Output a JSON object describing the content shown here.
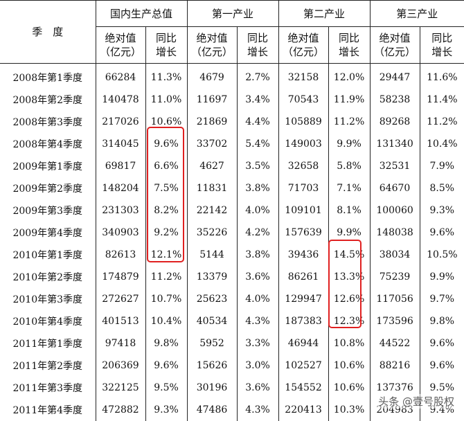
{
  "header": {
    "quarter_col": "季　度",
    "groups": [
      "国内生产总值",
      "第一产业",
      "第二产业",
      "第三产业"
    ],
    "abs_label_l1": "绝对值",
    "abs_label_l2": "（亿元）",
    "yoy_label_l1": "同比",
    "yoy_label_l2": "增长"
  },
  "rows": [
    {
      "q": "2008年第1季度",
      "v": [
        "66284",
        "11.3%",
        "4679",
        "2.7%",
        "32158",
        "12.0%",
        "29447",
        "11.6%"
      ]
    },
    {
      "q": "2008年第2季度",
      "v": [
        "140478",
        "11.0%",
        "11697",
        "3.4%",
        "70543",
        "11.9%",
        "58238",
        "11.4%"
      ]
    },
    {
      "q": "2008年第3季度",
      "v": [
        "217026",
        "10.6%",
        "21869",
        "4.4%",
        "105889",
        "11.2%",
        "89268",
        "11.2%"
      ]
    },
    {
      "q": "2008年第4季度",
      "v": [
        "314045",
        "9.6%",
        "33702",
        "5.4%",
        "149003",
        "9.9%",
        "131340",
        "10.4%"
      ]
    },
    {
      "q": "2009年第1季度",
      "v": [
        "69817",
        "6.6%",
        "4627",
        "3.5%",
        "32658",
        "5.8%",
        "32531",
        "7.9%"
      ]
    },
    {
      "q": "2009年第2季度",
      "v": [
        "148204",
        "7.5%",
        "11831",
        "3.8%",
        "71703",
        "7.1%",
        "64670",
        "8.5%"
      ]
    },
    {
      "q": "2009年第3季度",
      "v": [
        "231303",
        "8.2%",
        "22142",
        "4.0%",
        "109101",
        "8.1%",
        "100060",
        "9.3%"
      ]
    },
    {
      "q": "2009年第4季度",
      "v": [
        "340903",
        "9.2%",
        "35226",
        "4.2%",
        "157639",
        "9.9%",
        "148038",
        "9.6%"
      ]
    },
    {
      "q": "2010年第1季度",
      "v": [
        "82613",
        "12.1%",
        "5144",
        "3.8%",
        "39436",
        "14.5%",
        "38034",
        "10.5%"
      ]
    },
    {
      "q": "2010年第2季度",
      "v": [
        "174879",
        "11.2%",
        "13379",
        "3.6%",
        "86261",
        "13.3%",
        "75239",
        "9.9%"
      ]
    },
    {
      "q": "2010年第3季度",
      "v": [
        "272627",
        "10.7%",
        "25623",
        "4.0%",
        "129947",
        "12.6%",
        "117056",
        "9.7%"
      ]
    },
    {
      "q": "2010年第4季度",
      "v": [
        "401513",
        "10.4%",
        "40534",
        "4.3%",
        "187383",
        "12.3%",
        "173596",
        "9.8%"
      ]
    },
    {
      "q": "2011年第1季度",
      "v": [
        "97418",
        "9.8%",
        "5952",
        "3.3%",
        "46944",
        "10.8%",
        "44522",
        "9.6%"
      ]
    },
    {
      "q": "2011年第2季度",
      "v": [
        "206369",
        "9.6%",
        "15626",
        "3.0%",
        "102527",
        "10.6%",
        "88216",
        "9.6%"
      ]
    },
    {
      "q": "2011年第3季度",
      "v": [
        "322125",
        "9.5%",
        "30196",
        "3.6%",
        "154552",
        "10.6%",
        "137376",
        "9.5%"
      ]
    },
    {
      "q": "2011年第4季度",
      "v": [
        "472882",
        "9.3%",
        "47486",
        "4.3%",
        "220413",
        "10.3%",
        "204983",
        "9.4%"
      ]
    }
  ],
  "watermark": "头条 @壹号股权",
  "highlight_color": "#e02020"
}
